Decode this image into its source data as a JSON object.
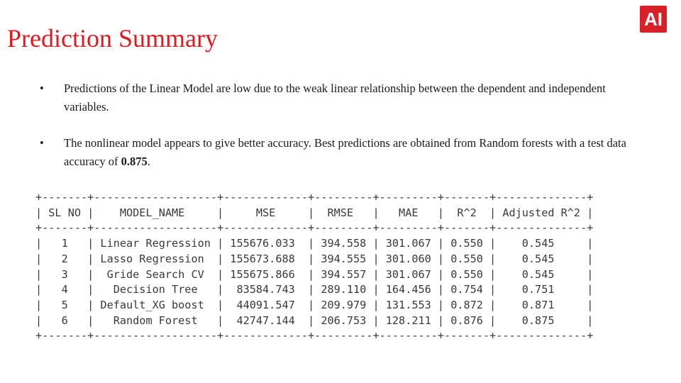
{
  "slide": {
    "title": "Prediction Summary",
    "logo_text": "AI",
    "bullets": [
      {
        "dot": "•",
        "text": "Predictions of the Linear Model are low due to the weak linear relationship between the dependent and independent variables.",
        "bold": ""
      },
      {
        "dot": "•",
        "text": "The nonlinear model appears to give better accuracy. Best predictions are obtained from Random forests with a test data accuracy of ",
        "bold": "0.875",
        "after": "."
      }
    ]
  },
  "table": {
    "columns": [
      "SL NO",
      "MODEL_NAME",
      "MSE",
      "RMSE",
      "MAE",
      "R^2",
      "Adjusted R^2"
    ],
    "rows": [
      [
        "1",
        "Linear Regression",
        "155676.033",
        "394.558",
        "301.067",
        "0.550",
        "0.545"
      ],
      [
        "2",
        "Lasso Regression",
        "155673.688",
        "394.555",
        "301.060",
        "0.550",
        "0.545"
      ],
      [
        "3",
        "Gride Search CV",
        "155675.866",
        "394.557",
        "301.067",
        "0.550",
        "0.545"
      ],
      [
        "4",
        "Decision Tree",
        "83584.743",
        "289.110",
        "164.456",
        "0.754",
        "0.751"
      ],
      [
        "5",
        "Default_XG boost",
        "44091.547",
        "209.979",
        "131.553",
        "0.872",
        "0.871"
      ],
      [
        "6",
        "Random Forest",
        "42747.144",
        "206.753",
        "128.211",
        "0.876",
        "0.875"
      ]
    ]
  },
  "colors": {
    "title": "#e0191e",
    "logo_bg": "#d92027",
    "logo_fg": "#ffffff",
    "body_text": "#1a1a1a",
    "table_text": "#3a3a3a"
  }
}
